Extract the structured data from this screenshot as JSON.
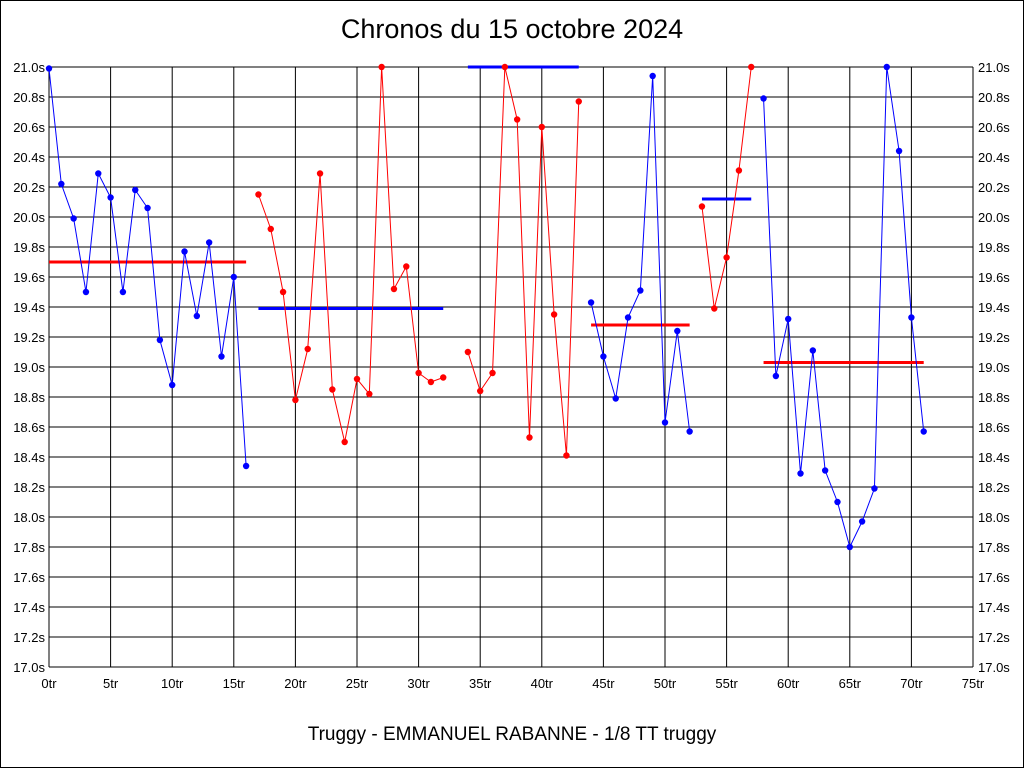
{
  "chart_data": {
    "type": "line",
    "title": "Chronos du 15 octobre 2024",
    "subtitle": "Truggy - EMMANUEL RABANNE - 1/8 TT truggy",
    "xlim": [
      0,
      75
    ],
    "ylim": [
      17.0,
      21.0
    ],
    "x_ticks": [
      0,
      5,
      10,
      15,
      20,
      25,
      30,
      35,
      40,
      45,
      50,
      55,
      60,
      65,
      70,
      75
    ],
    "x_tick_labels": [
      "0tr",
      "5tr",
      "10tr",
      "15tr",
      "20tr",
      "25tr",
      "30tr",
      "35tr",
      "40tr",
      "45tr",
      "50tr",
      "55tr",
      "60tr",
      "65tr",
      "70tr",
      "75tr"
    ],
    "y_ticks": [
      17.0,
      17.2,
      17.4,
      17.6,
      17.8,
      18.0,
      18.2,
      18.4,
      18.6,
      18.8,
      19.0,
      19.2,
      19.4,
      19.6,
      19.8,
      20.0,
      20.2,
      20.4,
      20.6,
      20.8,
      21.0
    ],
    "y_tick_labels": [
      "17.0s",
      "17.2s",
      "17.4s",
      "17.6s",
      "17.8s",
      "18.0s",
      "18.2s",
      "18.4s",
      "18.6s",
      "18.8s",
      "19.0s",
      "19.2s",
      "19.4s",
      "19.6s",
      "19.8s",
      "20.0s",
      "20.2s",
      "20.4s",
      "20.6s",
      "20.8s",
      "21.0s"
    ],
    "grid": true,
    "series": [
      {
        "color": "#0000ff",
        "x": [
          0,
          1,
          2,
          3,
          4,
          5,
          6,
          7,
          8,
          9,
          10,
          11,
          12,
          13,
          14,
          15,
          16
        ],
        "y": [
          20.99,
          20.22,
          19.99,
          19.5,
          20.29,
          20.13,
          19.5,
          20.18,
          20.06,
          19.18,
          18.88,
          19.77,
          19.34,
          19.83,
          19.07,
          19.6,
          18.34
        ]
      },
      {
        "color": "#ff0000",
        "x": [
          17,
          18,
          19,
          20,
          21,
          22,
          23,
          24,
          25,
          26,
          27,
          28,
          29,
          30,
          31,
          32
        ],
        "y": [
          20.15,
          19.92,
          19.5,
          18.78,
          19.12,
          20.29,
          18.85,
          18.5,
          18.92,
          18.82,
          21.0,
          19.52,
          19.67,
          18.96,
          18.9,
          18.93
        ]
      },
      {
        "color": "#ff0000",
        "x": [
          34,
          35,
          36,
          37,
          38,
          39,
          40,
          41,
          42,
          43
        ],
        "y": [
          19.1,
          18.84,
          18.96,
          21.0,
          20.65,
          18.53,
          20.6,
          19.35,
          18.41,
          20.77
        ]
      },
      {
        "color": "#0000ff",
        "x": [
          44,
          45,
          46,
          47,
          48,
          49,
          50,
          51,
          52
        ],
        "y": [
          19.43,
          19.07,
          18.79,
          19.33,
          19.51,
          20.94,
          18.63,
          19.24,
          18.57
        ]
      },
      {
        "color": "#ff0000",
        "x": [
          53,
          54,
          55,
          56,
          57
        ],
        "y": [
          20.07,
          19.39,
          19.73,
          20.31,
          21.0
        ]
      },
      {
        "color": "#0000ff",
        "x": [
          58,
          59,
          60,
          61,
          62,
          63,
          64,
          65,
          66,
          67,
          68,
          69,
          70,
          71
        ],
        "y": [
          20.79,
          18.94,
          19.32,
          18.29,
          19.11,
          18.31,
          18.1,
          17.8,
          17.97,
          18.19,
          21.0,
          20.44,
          19.33,
          18.57
        ]
      }
    ],
    "averages": [
      {
        "color": "#ff0000",
        "x0": 0,
        "x1": 16,
        "y": 19.7
      },
      {
        "color": "#0000ff",
        "x0": 17,
        "x1": 32,
        "y": 19.39
      },
      {
        "color": "#0000ff",
        "x0": 34,
        "x1": 43,
        "y": 21.0
      },
      {
        "color": "#ff0000",
        "x0": 44,
        "x1": 52,
        "y": 19.28
      },
      {
        "color": "#0000ff",
        "x0": 53,
        "x1": 57,
        "y": 20.12
      },
      {
        "color": "#ff0000",
        "x0": 58,
        "x1": 71,
        "y": 19.03
      }
    ]
  }
}
